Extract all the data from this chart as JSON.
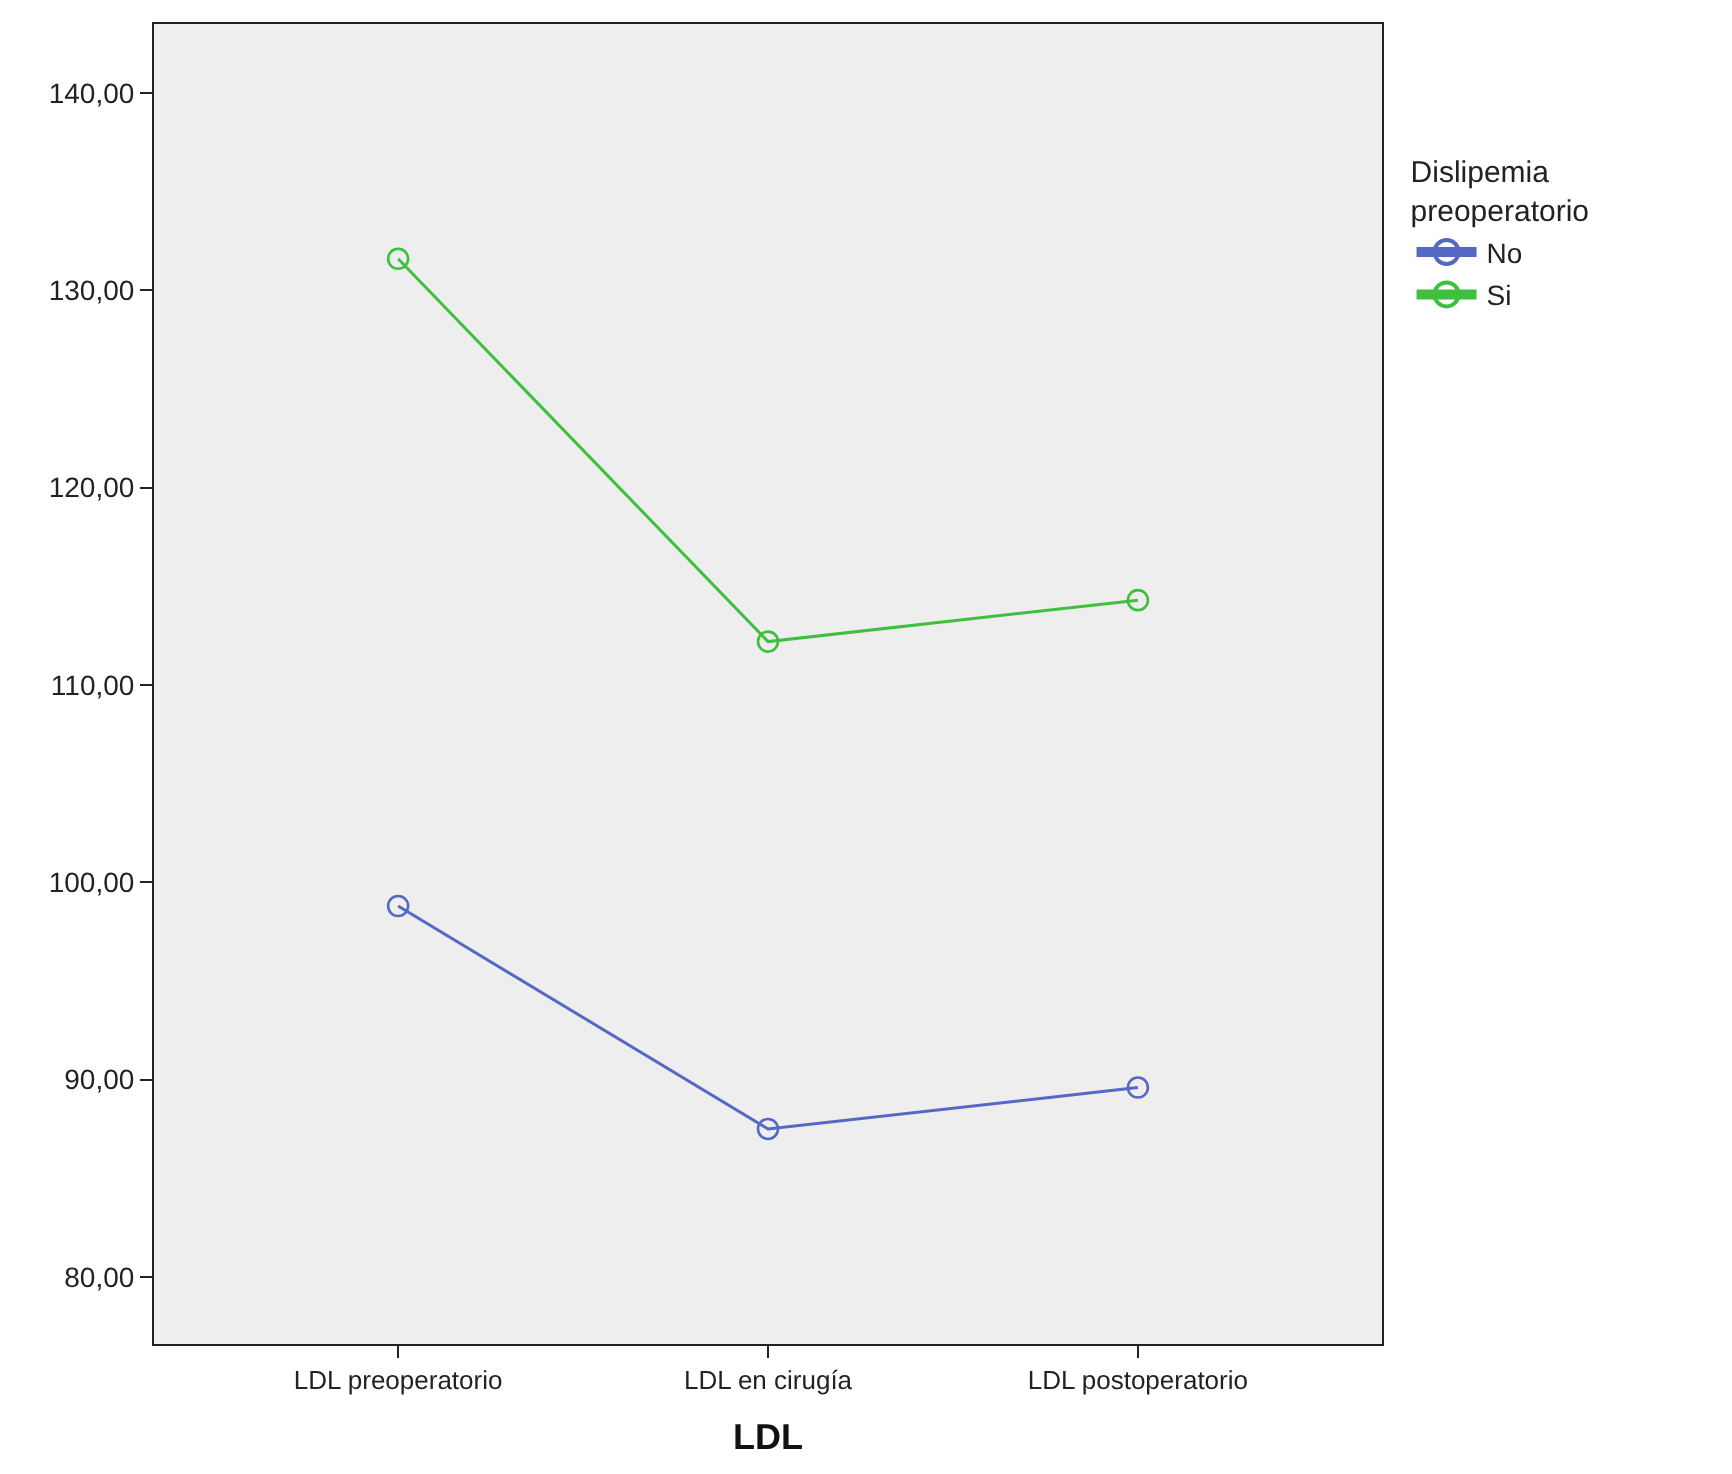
{
  "chart_data": {
    "type": "line",
    "xlabel": "LDL",
    "legend_title": "Dislipemia preoperatorio",
    "categories": [
      "LDL preoperatorio",
      "LDL en cirugía",
      "LDL postoperatorio"
    ],
    "series": [
      {
        "name": "No",
        "color": "#5468c4",
        "values": [
          98.8,
          87.5,
          89.6
        ]
      },
      {
        "name": "Si",
        "color": "#3ebf3e",
        "values": [
          131.6,
          112.2,
          114.3
        ]
      }
    ],
    "ylim": [
      76.6,
      143.5
    ],
    "yticks": [
      {
        "value": 80,
        "label": "80,00"
      },
      {
        "value": 90,
        "label": "90,00"
      },
      {
        "value": 100,
        "label": "100,00"
      },
      {
        "value": 110,
        "label": "110,00"
      },
      {
        "value": 120,
        "label": "120,00"
      },
      {
        "value": 130,
        "label": "130,00"
      },
      {
        "value": 140,
        "label": "140,00"
      }
    ],
    "grid": false,
    "legend": "top right",
    "marker": "circle",
    "line_style": "solid"
  }
}
